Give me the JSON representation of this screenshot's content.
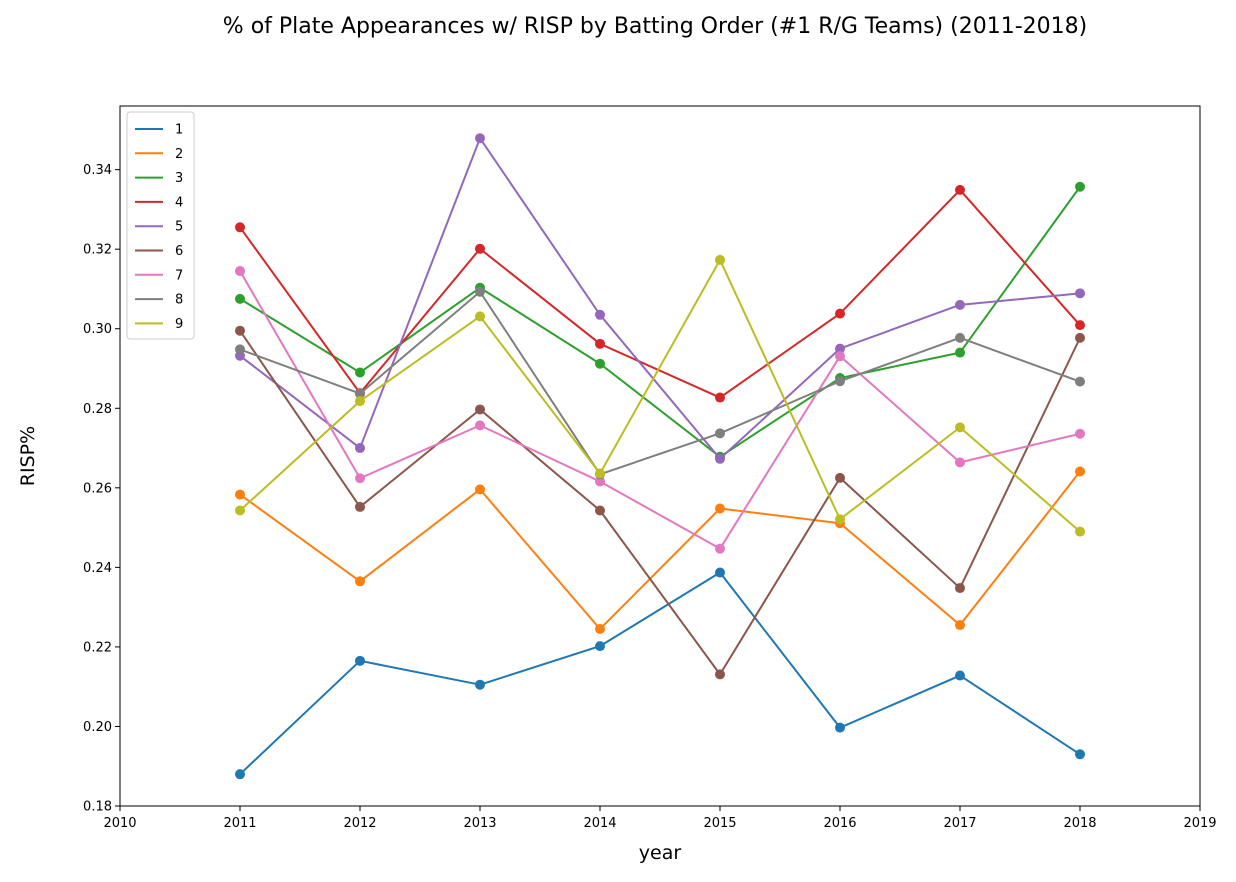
{
  "chart_data": {
    "type": "line",
    "title": "% of Plate Appearances w/ RISP by Batting Order (#1 R/G Teams) (2011-2018)",
    "xlabel": "year",
    "ylabel": "RISP%",
    "xlim": [
      2010,
      2019
    ],
    "ylim": [
      0.18,
      0.356
    ],
    "xticks": [
      "2010",
      "2011",
      "2012",
      "2013",
      "2014",
      "2015",
      "2016",
      "2017",
      "2018",
      "2019"
    ],
    "yticks": [
      "0.18",
      "0.20",
      "0.22",
      "0.24",
      "0.26",
      "0.28",
      "0.30",
      "0.32",
      "0.34"
    ],
    "grid": false,
    "legend_position": "upper-left",
    "markers": true,
    "x": [
      2011,
      2012,
      2013,
      2014,
      2015,
      2016,
      2017,
      2018
    ],
    "series": [
      {
        "name": "1",
        "color": "#1f77b4",
        "values": [
          0.188,
          0.2165,
          0.2105,
          0.2202,
          0.2387,
          0.1997,
          0.2128,
          0.193
        ]
      },
      {
        "name": "2",
        "color": "#ff7f0e",
        "values": [
          0.2583,
          0.2365,
          0.2596,
          0.2245,
          0.2548,
          0.2511,
          0.2255,
          0.2641
        ]
      },
      {
        "name": "3",
        "color": "#2ca02c",
        "values": [
          0.3075,
          0.289,
          0.3103,
          0.2912,
          0.2678,
          0.2876,
          0.294,
          0.3357
        ]
      },
      {
        "name": "4",
        "color": "#d62728",
        "values": [
          0.3255,
          0.2838,
          0.3201,
          0.2962,
          0.2827,
          0.3038,
          0.3349,
          0.3009
        ]
      },
      {
        "name": "5",
        "color": "#9467bd",
        "values": [
          0.2932,
          0.27,
          0.3479,
          0.3035,
          0.2673,
          0.295,
          0.306,
          0.3089
        ]
      },
      {
        "name": "6",
        "color": "#8c564b",
        "values": [
          0.2995,
          0.2552,
          0.2797,
          0.2543,
          0.2131,
          0.2625,
          0.2348,
          0.2977
        ]
      },
      {
        "name": "7",
        "color": "#e377c2",
        "values": [
          0.3145,
          0.2624,
          0.2757,
          0.2616,
          0.2447,
          0.2931,
          0.2664,
          0.2736
        ]
      },
      {
        "name": "8",
        "color": "#7f7f7f",
        "values": [
          0.2948,
          0.2837,
          0.3093,
          0.2634,
          0.2737,
          0.2868,
          0.2977,
          0.2867
        ]
      },
      {
        "name": "9",
        "color": "#bcbd22",
        "values": [
          0.2543,
          0.2818,
          0.3031,
          0.2636,
          0.3173,
          0.2521,
          0.2752,
          0.249
        ]
      }
    ]
  }
}
